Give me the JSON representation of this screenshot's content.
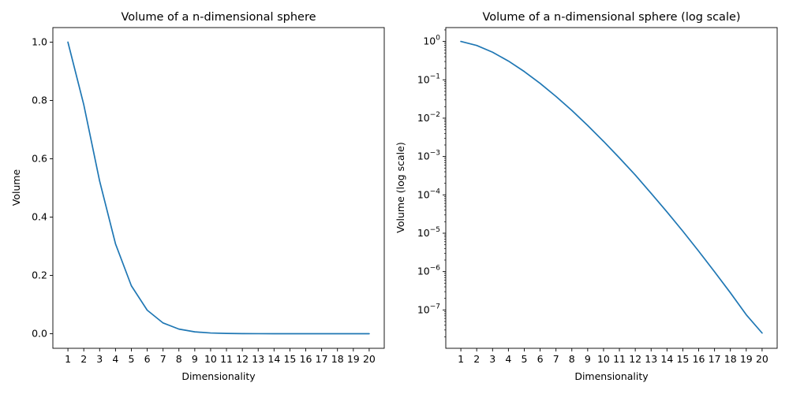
{
  "chart_data": [
    {
      "type": "line",
      "title": "Volume of a n-dimensional sphere",
      "xlabel": "Dimensionality",
      "ylabel": "Volume",
      "yscale": "linear",
      "grid": false,
      "xlim": [
        0.05,
        20.95
      ],
      "ylim": [
        -0.05,
        1.05
      ],
      "x_ticks": [
        1,
        2,
        3,
        4,
        5,
        6,
        7,
        8,
        9,
        10,
        11,
        12,
        13,
        14,
        15,
        16,
        17,
        18,
        19,
        20
      ],
      "y_ticks": [
        0.0,
        0.2,
        0.4,
        0.6,
        0.8,
        1.0
      ],
      "y_tick_labels": [
        "0.0",
        "0.2",
        "0.4",
        "0.6",
        "0.8",
        "1.0"
      ],
      "color": "#1f77b4",
      "series": [
        {
          "x": [
            1,
            2,
            3,
            4,
            5,
            6,
            7,
            8,
            9,
            10,
            11,
            12,
            13,
            14,
            15,
            16,
            17,
            18,
            19,
            20
          ],
          "values": [
            1.0,
            0.7854,
            0.5236,
            0.3084,
            0.1645,
            0.0807,
            0.0369,
            0.0159,
            0.00644,
            0.00249,
            0.00092,
            0.00033,
            0.00011,
            3.6e-05,
            1.13e-05,
            3.4e-06,
            9.9e-07,
            2.8e-07,
            7.5e-08,
            2.5e-08
          ]
        }
      ]
    },
    {
      "type": "line",
      "title": "Volume of a n-dimensional sphere (log scale)",
      "xlabel": "Dimensionality",
      "ylabel": "Volume (log scale)",
      "yscale": "log",
      "grid": false,
      "xlim": [
        0.05,
        20.95
      ],
      "ylim": [
        1e-08,
        2.3
      ],
      "x_ticks": [
        1,
        2,
        3,
        4,
        5,
        6,
        7,
        8,
        9,
        10,
        11,
        12,
        13,
        14,
        15,
        16,
        17,
        18,
        19,
        20
      ],
      "y_ticks_exponents": [
        0,
        -1,
        -2,
        -3,
        -4,
        -5,
        -6,
        -7
      ],
      "y_tick_base": "10",
      "color": "#1f77b4",
      "series": [
        {
          "x": [
            1,
            2,
            3,
            4,
            5,
            6,
            7,
            8,
            9,
            10,
            11,
            12,
            13,
            14,
            15,
            16,
            17,
            18,
            19,
            20
          ],
          "values": [
            1.0,
            0.7854,
            0.5236,
            0.3084,
            0.1645,
            0.0807,
            0.0369,
            0.0159,
            0.00644,
            0.00249,
            0.00092,
            0.00033,
            0.00011,
            3.6e-05,
            1.13e-05,
            3.4e-06,
            9.9e-07,
            2.8e-07,
            7.5e-08,
            2.5e-08
          ]
        }
      ]
    }
  ]
}
